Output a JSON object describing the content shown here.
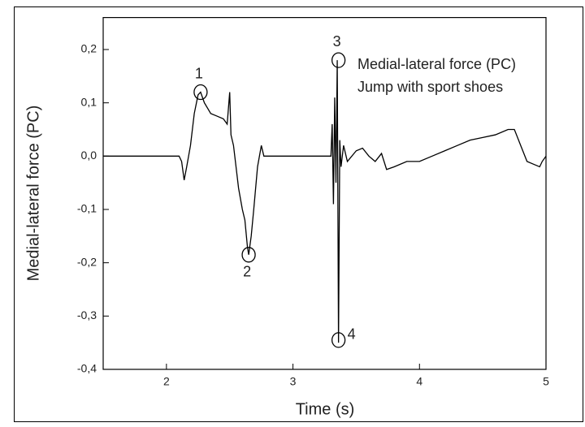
{
  "chart_data": {
    "type": "line",
    "x_label": "Time (s)",
    "y_label": "Medial-lateral force (PC)",
    "texts": [
      "Medial-lateral force (PC)",
      "Jump with sport shoes"
    ],
    "xlim": [
      1.5,
      5
    ],
    "ylim": [
      -0.4,
      0.26
    ],
    "xticks": [
      2,
      3,
      4,
      5
    ],
    "yticks": [
      {
        "value": -0.4,
        "label": "-0,4"
      },
      {
        "value": -0.3,
        "label": "-0,3"
      },
      {
        "value": -0.2,
        "label": "-0,2"
      },
      {
        "value": -0.1,
        "label": "-0,1"
      },
      {
        "value": 0,
        "label": "0,0"
      },
      {
        "value": 0.1,
        "label": "0,1"
      },
      {
        "value": 0.2,
        "label": "0,2"
      }
    ],
    "series": [
      {
        "color": "#000000",
        "x": [
          1.5,
          1.8,
          2.1,
          2.12,
          2.14,
          2.16,
          2.19,
          2.22,
          2.25,
          2.27,
          2.3,
          2.35,
          2.4,
          2.45,
          2.48,
          2.5,
          2.51,
          2.53,
          2.55,
          2.57,
          2.6,
          2.62,
          2.64,
          2.65,
          2.67,
          2.69,
          2.72,
          2.75,
          2.77,
          2.8,
          3.0,
          3.3,
          3.31,
          3.32,
          3.33,
          3.34,
          3.35,
          3.36,
          3.37,
          3.38,
          3.4,
          3.43,
          3.5,
          3.55,
          3.6,
          3.65,
          3.7,
          3.74,
          3.8,
          3.9,
          4.0,
          4.1,
          4.2,
          4.3,
          4.4,
          4.5,
          4.6,
          4.7,
          4.75,
          4.8,
          4.85,
          4.9,
          4.95,
          4.97,
          5.0
        ],
        "values": [
          0,
          0,
          0,
          -0.01,
          -0.045,
          -0.02,
          0.02,
          0.08,
          0.115,
          0.12,
          0.1,
          0.08,
          0.075,
          0.07,
          0.06,
          0.12,
          0.04,
          0.02,
          -0.02,
          -0.06,
          -0.1,
          -0.12,
          -0.17,
          -0.185,
          -0.15,
          -0.1,
          -0.02,
          0.02,
          0,
          0,
          0,
          0,
          0.06,
          -0.09,
          0.11,
          -0.05,
          0.18,
          -0.35,
          0.03,
          -0.02,
          0.02,
          -0.01,
          0.01,
          0.015,
          0,
          -0.01,
          0.005,
          -0.025,
          -0.02,
          -0.01,
          -0.01,
          0,
          0.01,
          0.02,
          0.03,
          0.035,
          0.04,
          0.05,
          0.05,
          0.02,
          -0.01,
          -0.015,
          -0.02,
          -0.01,
          0
        ]
      }
    ],
    "annotations": [
      {
        "text": "1",
        "x": 2.27,
        "y": 0.12,
        "pos": "above"
      },
      {
        "text": "2",
        "x": 2.65,
        "y": -0.185,
        "pos": "below"
      },
      {
        "text": "3",
        "x": 3.36,
        "y": 0.18,
        "pos": "above"
      },
      {
        "text": "4",
        "x": 3.36,
        "y": -0.345,
        "pos": "right"
      }
    ]
  }
}
